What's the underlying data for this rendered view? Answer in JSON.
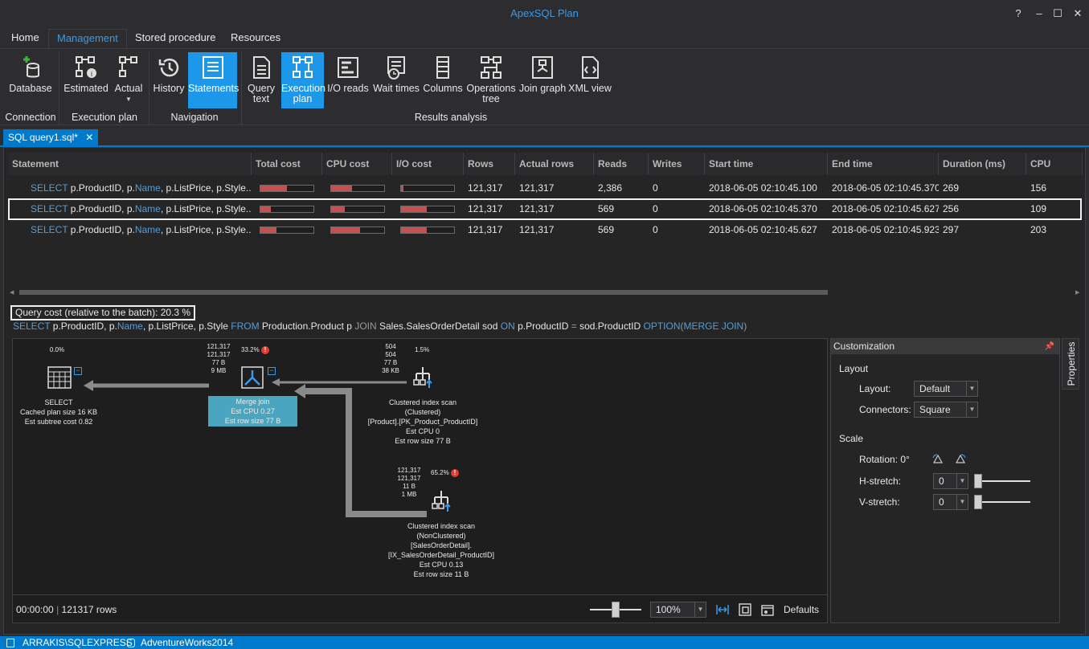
{
  "app": {
    "title": "ApexSQL Plan"
  },
  "window": {
    "min": "–",
    "restore": "❐",
    "max": "☐",
    "close": "✕"
  },
  "menu": {
    "tabs": [
      "Home",
      "Management",
      "Stored procedure",
      "Resources"
    ],
    "active": "Management"
  },
  "ribbon": {
    "buttons": {
      "database": "Database",
      "estimated": "Estimated",
      "actual": "Actual",
      "history": "History",
      "statements": "Statements",
      "query_text_1": "Query",
      "query_text_2": "text",
      "execution_plan_1": "Execution",
      "execution_plan_2": "plan",
      "io_reads": "I/O reads",
      "wait_times": "Wait times",
      "columns": "Columns",
      "operations_tree_1": "Operations",
      "operations_tree_2": "tree",
      "join_graph": "Join graph",
      "xml_view": "XML view"
    },
    "groups": {
      "connection": "Connection",
      "execution_plan": "Execution plan",
      "navigation": "Navigation",
      "results_analysis": "Results analysis"
    }
  },
  "doc_tab": {
    "label": "SQL query1.sql*",
    "close": "✕"
  },
  "grid": {
    "headers": [
      "Statement",
      "Total cost",
      "CPU cost",
      "I/O cost",
      "Rows",
      "Actual rows",
      "Reads",
      "Writes",
      "Start time",
      "End time",
      "Duration (ms)",
      "CPU"
    ],
    "rows": [
      {
        "kw": "SELECT",
        "pre": " p.ProductID, p.",
        "name": "Name",
        "post": ", p.ListPrice, p.Style...",
        "total": 0.5,
        "cpu": 0.4,
        "io": 0.04,
        "rows": "121,317",
        "actual": "121,317",
        "reads": "2,386",
        "writes": "0",
        "start": "2018-06-05 02:10:45.100",
        "end": "2018-06-05 02:10:45.370",
        "duration": "269",
        "cpu_ms": "156"
      },
      {
        "kw": "SELECT",
        "pre": " p.ProductID, p.",
        "name": "Name",
        "post": ", p.ListPrice, p.Style...",
        "total": 0.2,
        "cpu": 0.25,
        "io": 0.49,
        "rows": "121,317",
        "actual": "121,317",
        "reads": "569",
        "writes": "0",
        "start": "2018-06-05 02:10:45.370",
        "end": "2018-06-05 02:10:45.627",
        "duration": "256",
        "cpu_ms": "109"
      },
      {
        "kw": "SELECT",
        "pre": " p.ProductID, p.",
        "name": "Name",
        "post": ", p.ListPrice, p.Style...",
        "total": 0.3,
        "cpu": 0.55,
        "io": 0.49,
        "rows": "121,317",
        "actual": "121,317",
        "reads": "569",
        "writes": "0",
        "start": "2018-06-05 02:10:45.627",
        "end": "2018-06-05 02:10:45.923",
        "duration": "297",
        "cpu_ms": "203"
      }
    ]
  },
  "query_cost": "Query cost (relative to the batch):  20.3 %",
  "query_text": [
    {
      "t": "SELECT",
      "c": "blue"
    },
    {
      "t": " p.ProductID, p.",
      "c": ""
    },
    {
      "t": "Name",
      "c": "blue"
    },
    {
      "t": ", p.ListPrice, p.Style ",
      "c": ""
    },
    {
      "t": "FROM",
      "c": "blue"
    },
    {
      "t": " Production.Product p ",
      "c": ""
    },
    {
      "t": "JOIN",
      "c": "gray"
    },
    {
      "t": " Sales.SalesOrderDetail sod ",
      "c": ""
    },
    {
      "t": "ON",
      "c": "blue"
    },
    {
      "t": " p.ProductID ",
      "c": ""
    },
    {
      "t": "=",
      "c": "gray"
    },
    {
      "t": " sod.ProductID ",
      "c": ""
    },
    {
      "t": "OPTION",
      "c": "blue"
    },
    {
      "t": "(",
      "c": "gray"
    },
    {
      "t": "MERGE JOIN",
      "c": "blue"
    },
    {
      "t": ")",
      "c": "gray"
    }
  ],
  "plan": {
    "select": {
      "pct": "0.0%",
      "lines": [
        "SELECT",
        "Cached plan size  16 KB",
        "Est subtree cost  0.82"
      ]
    },
    "merge": {
      "stats": [
        "121,317",
        "121,317",
        "77 B",
        "9 MB"
      ],
      "pct": "33.2%",
      "lines": [
        "Merge join",
        "Est CPU  0.27",
        "Est row size  77 B"
      ]
    },
    "scan1": {
      "stats": [
        "504",
        "504",
        "77 B",
        "38 KB"
      ],
      "pct": "1.5%",
      "lines": [
        "Clustered index scan",
        "(Clustered)",
        "[Product].[PK_Product_ProductID]",
        "Est CPU  0",
        "Est row size  77 B"
      ]
    },
    "scan2": {
      "stats": [
        "121,317",
        "121,317",
        "11 B",
        "1 MB"
      ],
      "pct": "65.2%",
      "lines": [
        "Clustered index scan",
        "(NonClustered)",
        "[SalesOrderDetail].",
        "[IX_SalesOrderDetail_ProductID]",
        "Est CPU  0.13",
        "Est row size  11 B"
      ]
    },
    "warn": "!",
    "collapse": "−",
    "footer": {
      "time": "00:00:00",
      "rows": "121317 rows",
      "zoom": "100%",
      "defaults": "Defaults"
    }
  },
  "customization": {
    "title": "Customization",
    "layout_section": "Layout",
    "layout_label": "Layout:",
    "layout_value": "Default",
    "connectors_label": "Connectors:",
    "connectors_value": "Square",
    "scale_section": "Scale",
    "rotation_label": "Rotation: 0°",
    "hstretch_label": "H-stretch:",
    "hstretch_value": "0",
    "vstretch_label": "V-stretch:",
    "vstretch_value": "0",
    "properties_tab": "Properties"
  },
  "status": {
    "server": "ARRAKIS\\SQLEXPRESS",
    "database": "AdventureWorks2014"
  }
}
